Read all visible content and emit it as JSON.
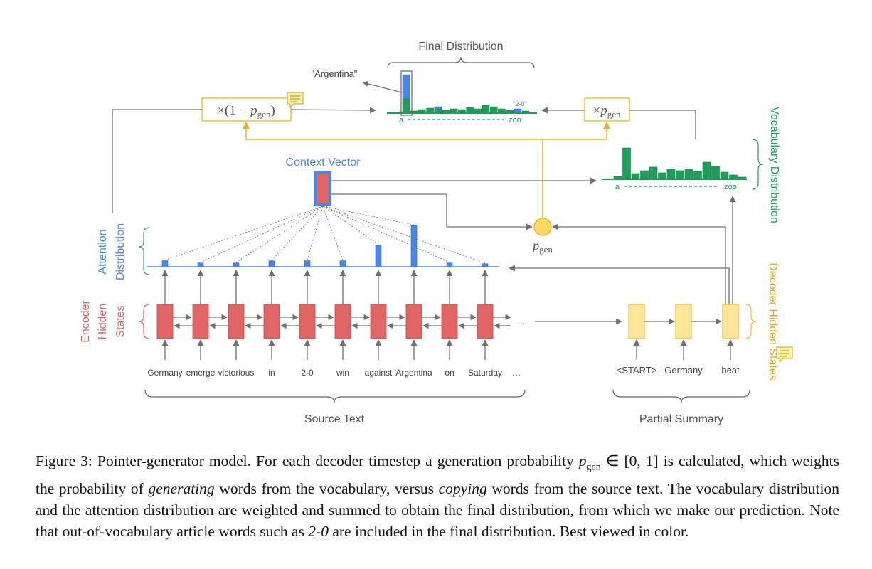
{
  "figure": {
    "final_distribution_label": "Final Distribution",
    "argentina_label": "\"Argentina\"",
    "two_zero_label": "\"2-0\"",
    "times_one_minus": "×(1 − ",
    "times_p": "×",
    "p": "p",
    "gen": "gen",
    "close_paren": ")",
    "vocab_a": "a",
    "vocab_zoo": "zoo",
    "context_vector_label": "Context Vector",
    "vocabulary_distribution_label": "Vocabulary Distribution",
    "decoder_hidden_states_label": "Decoder Hidden States",
    "attention_label_line1": "Attention",
    "attention_label_line2": "Distribution",
    "encoder_label_line1": "Encoder",
    "encoder_label_line2": "Hidden",
    "encoder_label_line3": "States",
    "ellipsis": "...",
    "source_words": [
      "Germany",
      "emerge",
      "victorious",
      "in",
      "2-0",
      "win",
      "against",
      "Argentina",
      "on",
      "Saturday"
    ],
    "attention_values": [
      0.08,
      0.05,
      0.05,
      0.08,
      0.08,
      0.08,
      0.29,
      0.55,
      0.05,
      0.04
    ],
    "summary_words": [
      "<START>",
      "Germany",
      "beat"
    ],
    "source_text_label": "Source Text",
    "partial_summary_label": "Partial Summary",
    "colors": {
      "encoder": "#e06666",
      "attention": "#4a86e8",
      "decoder": "#f1c232",
      "vocab": "#1e9e5a",
      "arrow": "#707070"
    }
  },
  "caption": {
    "prefix": "Figure 3: Pointer-generator model. For each decoder timestep a generation probability ",
    "p": "p",
    "gen": "gen",
    "membership": " ∈ [0, 1] is calculated, which weights the probability of ",
    "generating": "generating",
    "middle": " words from the vocabulary, versus ",
    "copying": "copying",
    "rest": " words from the source text. The vocabulary distribution and the attention distribution are weighted and summed to obtain the final distribution, from which we make our prediction. Note that out-of-vocabulary article words such as ",
    "example": "2-0",
    "end": " are included in the final distribution. Best viewed in color."
  }
}
